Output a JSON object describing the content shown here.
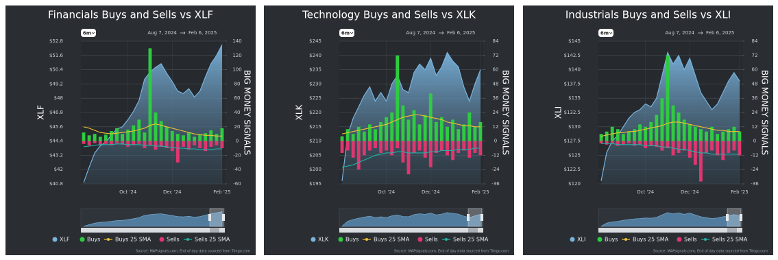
{
  "chart_data": [
    {
      "type": "combo",
      "title": "Financials Buys and Sells vs XLF",
      "range_button": "6m",
      "date_from": "Aug 7, 2024",
      "date_to": "Feb 6, 2025",
      "ylabel": "XLF",
      "y2label": "BIG MONEY SIGNALS",
      "source": "Source: MAPsignals.com, End of day data sourced from Tiingo.com",
      "categories": [
        null,
        null,
        null,
        null,
        null,
        null,
        null,
        null,
        "Oct '24",
        null,
        null,
        null,
        null,
        null,
        null,
        null,
        "Dec '24",
        null,
        null,
        null,
        null,
        null,
        null,
        null,
        null,
        "Feb '25"
      ],
      "ylim": [
        40.8,
        52.8
      ],
      "yticks": [
        {
          "value": 40.8,
          "label": "$40.8"
        },
        {
          "value": 42,
          "label": "$42"
        },
        {
          "value": 43.2,
          "label": "$43.2"
        },
        {
          "value": 44.4,
          "label": "$44.4"
        },
        {
          "value": 45.6,
          "label": "$45.6"
        },
        {
          "value": 46.8,
          "label": "$46.8"
        },
        {
          "value": 48,
          "label": "$48"
        },
        {
          "value": 49.2,
          "label": "$49.2"
        },
        {
          "value": 50.4,
          "label": "$50.4"
        },
        {
          "value": 51.6,
          "label": "$51.6"
        },
        {
          "value": 52.8,
          "label": "$52.8"
        }
      ],
      "y2lim": [
        -60,
        140
      ],
      "y2ticks": [
        -60,
        -40,
        -20,
        0,
        20,
        40,
        60,
        80,
        100,
        120,
        140
      ],
      "grid": true,
      "series": [
        {
          "name": "XLF",
          "type": "area",
          "color": "#7ab3dd",
          "values": [
            40.9,
            42.2,
            43.4,
            44.0,
            44.3,
            44.9,
            45.4,
            45.6,
            46.2,
            46.9,
            47.8,
            49.6,
            50.2,
            50.6,
            50.9,
            50.1,
            49.4,
            48.6,
            48.4,
            48.8,
            48.1,
            48.6,
            49.8,
            50.9,
            51.6,
            52.5
          ]
        },
        {
          "name": "Buys",
          "type": "bar",
          "axis": "y2",
          "color": "#2ecc40",
          "values": [
            12,
            8,
            10,
            6,
            9,
            14,
            18,
            10,
            16,
            22,
            30,
            12,
            130,
            40,
            28,
            20,
            14,
            10,
            8,
            12,
            6,
            9,
            11,
            15,
            10,
            18
          ]
        },
        {
          "name": "Buys 25 SMA",
          "type": "line",
          "axis": "y2",
          "color": "#f2c230",
          "values": [
            20,
            18,
            15,
            12,
            11,
            10,
            11,
            12,
            13,
            14,
            16,
            18,
            22,
            24,
            22,
            20,
            18,
            16,
            14,
            12,
            10,
            9,
            8,
            8,
            7,
            7
          ]
        },
        {
          "name": "Sells",
          "type": "bar",
          "axis": "y2",
          "color": "#e0366f",
          "values": [
            -4,
            -6,
            -3,
            -5,
            -4,
            -6,
            -3,
            -5,
            -8,
            -6,
            -4,
            -10,
            -6,
            -12,
            -8,
            -10,
            -14,
            -30,
            -8,
            -12,
            -6,
            -10,
            -14,
            -8,
            -6,
            -10
          ]
        },
        {
          "name": "Sells 25 SMA",
          "type": "line",
          "axis": "y2",
          "color": "#22b3a8",
          "values": [
            -8,
            -7,
            -6,
            -5,
            -5,
            -5,
            -4,
            -4,
            -5,
            -5,
            -5,
            -6,
            -6,
            -7,
            -7,
            -8,
            -9,
            -10,
            -10,
            -11,
            -11,
            -12,
            -12,
            -12,
            -11,
            -11
          ]
        }
      ]
    },
    {
      "type": "combo",
      "title": "Technology Buys and Sells vs XLK",
      "range_button": "6m",
      "date_from": "Aug 7, 2024",
      "date_to": "Feb 6, 2025",
      "ylabel": "XLK",
      "y2label": "BIG MONEY SIGNALS",
      "source": "Source: MAPsignals.com, End of day data sourced from Tiingo.com",
      "categories": [
        null,
        null,
        null,
        null,
        null,
        null,
        null,
        null,
        "Oct '24",
        null,
        null,
        null,
        null,
        null,
        null,
        null,
        "Dec '24",
        null,
        null,
        null,
        null,
        null,
        null,
        null,
        null,
        "Feb '25"
      ],
      "ylim": [
        195,
        245
      ],
      "yticks": [
        {
          "value": 195,
          "label": "$195"
        },
        {
          "value": 200,
          "label": "$200"
        },
        {
          "value": 205,
          "label": "$205"
        },
        {
          "value": 210,
          "label": "$210"
        },
        {
          "value": 215,
          "label": "$215"
        },
        {
          "value": 220,
          "label": "$220"
        },
        {
          "value": 225,
          "label": "$225"
        },
        {
          "value": 230,
          "label": "$230"
        },
        {
          "value": 235,
          "label": "$235"
        },
        {
          "value": 240,
          "label": "$240"
        },
        {
          "value": 245,
          "label": "$245"
        }
      ],
      "y2lim": [
        -36,
        84
      ],
      "y2ticks": [
        -36,
        -24,
        -12,
        0,
        12,
        24,
        36,
        48,
        60,
        72,
        84
      ],
      "grid": true,
      "series": [
        {
          "name": "XLK",
          "type": "area",
          "color": "#7ab3dd",
          "values": [
            196,
            212,
            218,
            222,
            226,
            229,
            224,
            227,
            224,
            230,
            233,
            228,
            227,
            234,
            237,
            235,
            239,
            233,
            236,
            241,
            238,
            236,
            229,
            224,
            230,
            235
          ]
        },
        {
          "name": "Buys",
          "type": "bar",
          "axis": "y2",
          "color": "#2ecc40",
          "values": [
            4,
            10,
            6,
            12,
            8,
            14,
            10,
            16,
            20,
            24,
            72,
            30,
            18,
            26,
            14,
            22,
            40,
            16,
            20,
            12,
            18,
            10,
            14,
            24,
            12,
            16
          ]
        },
        {
          "name": "Buys 25 SMA",
          "type": "line",
          "axis": "y2",
          "color": "#f2c230",
          "values": [
            6,
            7,
            8,
            9,
            10,
            11,
            12,
            13,
            14,
            16,
            18,
            20,
            21,
            22,
            22,
            21,
            20,
            19,
            18,
            16,
            15,
            14,
            13,
            13,
            12,
            12
          ]
        },
        {
          "name": "Sells",
          "type": "bar",
          "axis": "y2",
          "color": "#e0366f",
          "values": [
            -10,
            -8,
            -14,
            -24,
            -12,
            -8,
            -6,
            -10,
            -8,
            -12,
            -6,
            -18,
            -28,
            -10,
            -8,
            -14,
            -22,
            -10,
            -8,
            -12,
            -16,
            -10,
            -8,
            -14,
            -10,
            -12
          ]
        },
        {
          "name": "Sells 25 SMA",
          "type": "line",
          "axis": "y2",
          "color": "#22b3a8",
          "values": [
            -22,
            -21,
            -20,
            -18,
            -16,
            -14,
            -12,
            -11,
            -10,
            -10,
            -9,
            -9,
            -10,
            -10,
            -10,
            -10,
            -9,
            -9,
            -8,
            -8,
            -8,
            -7,
            -7,
            -7,
            -6,
            -6
          ]
        }
      ]
    },
    {
      "type": "combo",
      "title": "Industrials Buys and Sells vs XLI",
      "range_button": "6m",
      "date_from": "Aug 7, 2024",
      "date_to": "Feb 6, 2025",
      "ylabel": "XLI",
      "y2label": "BIG MONEY SIGNALS",
      "source": "Source: MAPsignals.com, End of day data sourced from Tiingo.com",
      "categories": [
        null,
        null,
        null,
        null,
        null,
        null,
        null,
        null,
        "Oct '24",
        null,
        null,
        null,
        null,
        null,
        null,
        null,
        "Dec '24",
        null,
        null,
        null,
        null,
        null,
        null,
        null,
        null,
        "Feb '25"
      ],
      "ylim": [
        120,
        145
      ],
      "yticks": [
        {
          "value": 120,
          "label": "$120"
        },
        {
          "value": 122.5,
          "label": "$122.5"
        },
        {
          "value": 125,
          "label": "$125"
        },
        {
          "value": 127.5,
          "label": "$127.5"
        },
        {
          "value": 130,
          "label": "$130"
        },
        {
          "value": 132.5,
          "label": "$132.5"
        },
        {
          "value": 135,
          "label": "$135"
        },
        {
          "value": 137.5,
          "label": "$137.5"
        },
        {
          "value": 140,
          "label": "$140"
        },
        {
          "value": 142.5,
          "label": "$142.5"
        },
        {
          "value": 145,
          "label": "$145"
        }
      ],
      "y2lim": [
        -36,
        84
      ],
      "y2ticks": [
        -36,
        -24,
        -12,
        0,
        12,
        24,
        36,
        48,
        60,
        72,
        84
      ],
      "grid": true,
      "series": [
        {
          "name": "XLI",
          "type": "area",
          "color": "#7ab3dd",
          "values": [
            120.5,
            125.5,
            127.5,
            128.5,
            130,
            131.5,
            132.5,
            133,
            134,
            133.5,
            135,
            139,
            143,
            141,
            142.5,
            140,
            142,
            139,
            136,
            134.5,
            133,
            134,
            136,
            138,
            139.5,
            138
          ]
        },
        {
          "name": "Buys",
          "type": "bar",
          "axis": "y2",
          "color": "#2ecc40",
          "values": [
            6,
            8,
            12,
            10,
            6,
            8,
            10,
            14,
            12,
            16,
            22,
            36,
            72,
            30,
            24,
            18,
            14,
            12,
            10,
            8,
            12,
            6,
            8,
            10,
            12,
            8
          ]
        },
        {
          "name": "Buys 25 SMA",
          "type": "line",
          "axis": "y2",
          "color": "#f2c230",
          "values": [
            4,
            5,
            6,
            7,
            7,
            8,
            8,
            9,
            10,
            11,
            12,
            13,
            15,
            16,
            16,
            15,
            14,
            13,
            12,
            11,
            10,
            9,
            9,
            8,
            8,
            8
          ]
        },
        {
          "name": "Sells",
          "type": "bar",
          "axis": "y2",
          "color": "#e0366f",
          "values": [
            -2,
            -3,
            -2,
            -4,
            -3,
            -2,
            -4,
            -3,
            -6,
            -4,
            -5,
            -8,
            -6,
            -12,
            -10,
            -8,
            -14,
            -20,
            -34,
            -10,
            -8,
            -12,
            -16,
            -10,
            -8,
            -12
          ]
        },
        {
          "name": "Sells 25 SMA",
          "type": "line",
          "axis": "y2",
          "color": "#22b3a8",
          "values": [
            -2,
            -2,
            -2,
            -3,
            -3,
            -3,
            -3,
            -3,
            -4,
            -4,
            -4,
            -5,
            -5,
            -6,
            -7,
            -7,
            -8,
            -9,
            -10,
            -10,
            -11,
            -11,
            -11,
            -11,
            -11,
            -11
          ]
        }
      ]
    }
  ]
}
